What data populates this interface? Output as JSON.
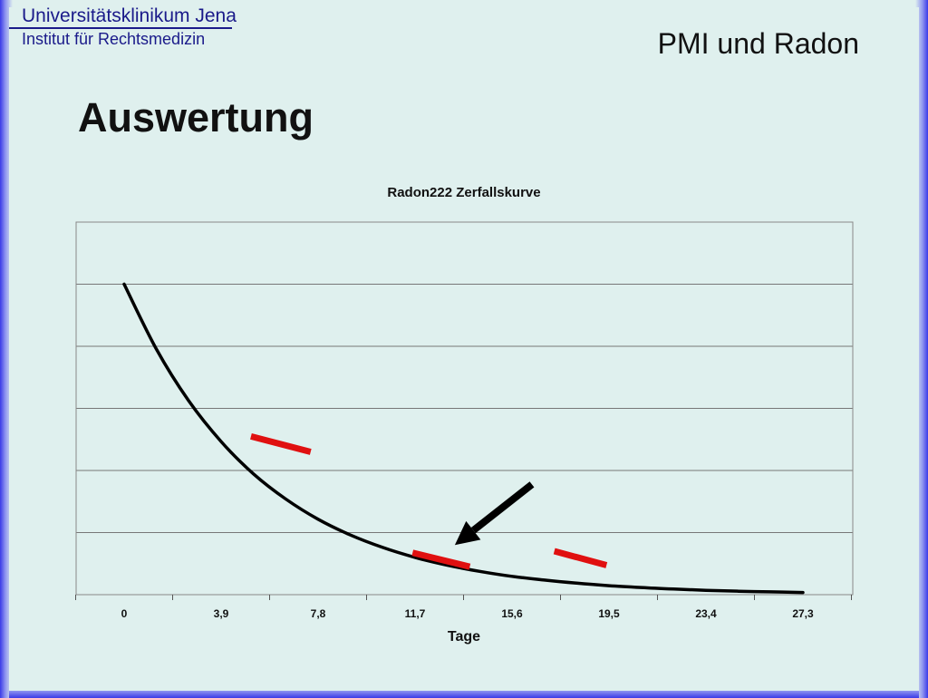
{
  "header": {
    "institution": "Universitätsklinikum Jena",
    "department": "Institut für Rechtsmedizin",
    "topic": "PMI und Radon"
  },
  "slide": {
    "title": "Auswertung"
  },
  "colors": {
    "background": "#dff0ee",
    "curve": "#000000",
    "marker": "#e01010",
    "arrow": "#000000",
    "brand": "#1a1a8a"
  },
  "chart_data": {
    "type": "line",
    "title": "Radon222 Zerfallskurve",
    "xlabel": "Tage",
    "ylabel": "",
    "x_ticks": [
      "0",
      "3,9",
      "7,8",
      "11,7",
      "15,6",
      "19,5",
      "23,4",
      "27,3"
    ],
    "xlim": [
      0,
      27.3
    ],
    "ylim": [
      0,
      120
    ],
    "grid": true,
    "half_life_days": 3.825,
    "series": [
      {
        "x": [
          0,
          1.3,
          2.6,
          3.9,
          5.2,
          6.5,
          7.8,
          9.1,
          10.4,
          11.7,
          13.0,
          14.3,
          15.6,
          16.9,
          18.2,
          19.5,
          20.8,
          22.1,
          23.4,
          24.7,
          26.0,
          27.3
        ],
        "y": [
          100,
          79.0,
          62.4,
          49.3,
          38.9,
          30.8,
          24.3,
          19.2,
          15.2,
          12.0,
          9.5,
          7.5,
          5.9,
          4.7,
          3.7,
          2.9,
          2.3,
          1.8,
          1.4,
          1.1,
          0.9,
          0.7
        ]
      }
    ],
    "annotations": [
      {
        "type": "red-tick",
        "x": [
          5.1,
          7.5
        ],
        "y": [
          51,
          46
        ]
      },
      {
        "type": "red-tick",
        "x": [
          11.6,
          13.9
        ],
        "y": [
          13.5,
          9
        ]
      },
      {
        "type": "red-tick",
        "x": [
          17.3,
          19.4
        ],
        "y": [
          14,
          9.5
        ]
      },
      {
        "type": "arrow",
        "from": [
          16.4,
          35.5
        ],
        "to": [
          13.3,
          16
        ]
      }
    ]
  }
}
